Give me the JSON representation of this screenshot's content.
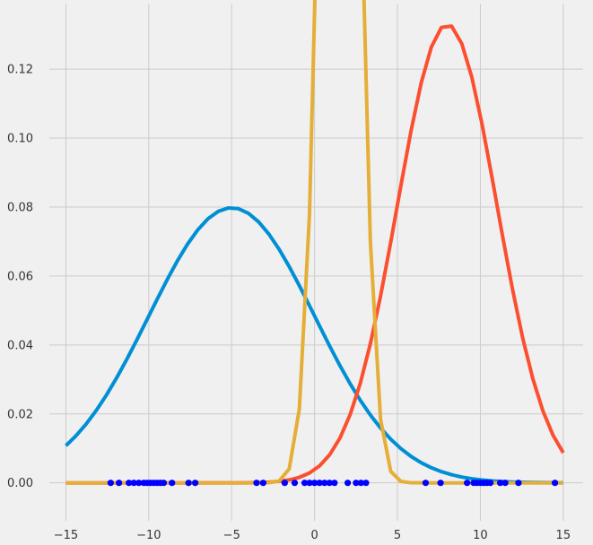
{
  "chart_data": {
    "type": "line",
    "title": "",
    "xlabel": "",
    "ylabel": "",
    "xlim": [
      -16,
      16.2
    ],
    "ylim": [
      -0.011,
      0.139
    ],
    "grid": true,
    "x_ticks": [
      -15,
      -10,
      -5,
      0,
      5,
      10,
      15
    ],
    "x_tick_labels": [
      "−15",
      "−10",
      "−5",
      "0",
      "5",
      "10",
      "15"
    ],
    "y_ticks": [
      0.0,
      0.02,
      0.04,
      0.06,
      0.08,
      0.1,
      0.12
    ],
    "y_tick_labels": [
      "0.00",
      "0.02",
      "0.04",
      "0.06",
      "0.08",
      "0.10",
      "0.12"
    ],
    "x_sample": {
      "start": -15,
      "end": 15,
      "count": 50
    },
    "series": [
      {
        "color": "#008fd5",
        "kind": "line",
        "distribution": "normal",
        "mean": -5,
        "std": 5
      },
      {
        "color": "#fc4f30",
        "kind": "line",
        "distribution": "normal",
        "mean": 8,
        "std": 3
      },
      {
        "color": "#e5ae38",
        "kind": "line",
        "distribution": "normal",
        "mean": 1.5,
        "std": 1
      },
      {
        "color": "#0000ff",
        "kind": "points",
        "x": [
          -12.3,
          -11.8,
          -11.2,
          -10.9,
          -10.6,
          -10.3,
          -10.1,
          -9.9,
          -9.7,
          -9.5,
          -9.3,
          -9.1,
          -8.6,
          -7.6,
          -7.2,
          -3.5,
          -3.1,
          -1.8,
          -1.2,
          -0.6,
          -0.3,
          0.0,
          0.3,
          0.6,
          0.9,
          1.2,
          2.0,
          2.5,
          2.8,
          3.1,
          6.7,
          7.6,
          9.2,
          9.6,
          9.8,
          10.0,
          10.2,
          10.4,
          10.6,
          11.2,
          11.5,
          12.3,
          14.5
        ],
        "y_value": 0
      }
    ]
  }
}
